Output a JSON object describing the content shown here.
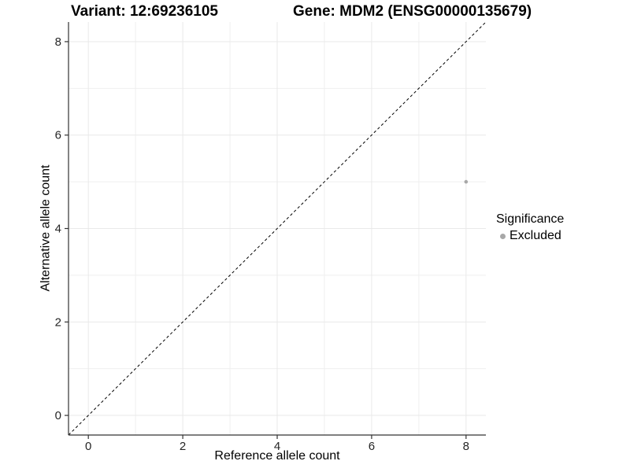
{
  "header": {
    "variant_title": "Variant: 12:69236105",
    "gene_title": "Gene: MDM2 (ENSG00000135679)"
  },
  "chart_data": {
    "type": "scatter",
    "title_left": "Variant: 12:69236105",
    "title_right": "Gene: MDM2 (ENSG00000135679)",
    "xlabel": "Reference allele count",
    "ylabel": "Alternative allele count",
    "xlim": [
      -0.42,
      8.42
    ],
    "ylim": [
      -0.42,
      8.42
    ],
    "xticks": [
      0,
      2,
      4,
      6,
      8
    ],
    "yticks": [
      0,
      2,
      4,
      6,
      8
    ],
    "xminor": [
      1,
      3,
      5,
      7
    ],
    "yminor": [
      1,
      3,
      5,
      7
    ],
    "grid": "on",
    "points": [
      {
        "x": 8,
        "y": 5,
        "significance": "Excluded"
      }
    ],
    "identity_line": {
      "type": "y=x",
      "style": "dashed"
    },
    "legend": {
      "title": "Significance",
      "position": "right",
      "items": [
        {
          "label": "Excluded",
          "color": "#a8a8a8"
        }
      ]
    }
  },
  "colors": {
    "background": "#ffffff",
    "grid_major": "#e9e9e9",
    "grid_minor": "#efefef",
    "axis_line": "#333333",
    "tick_mark": "#333333",
    "tick_label": "#262626",
    "dashed_line": "#000000",
    "point": "#a8a8a8"
  }
}
